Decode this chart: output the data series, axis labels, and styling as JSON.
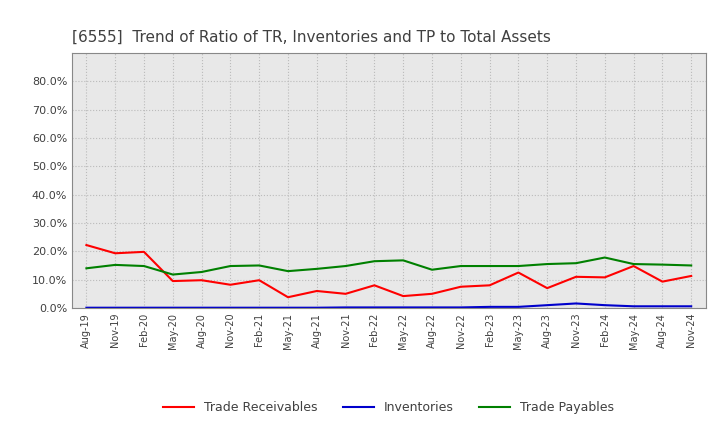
{
  "title": "[6555]  Trend of Ratio of TR, Inventories and TP to Total Assets",
  "x_labels": [
    "Aug-19",
    "Nov-19",
    "Feb-20",
    "May-20",
    "Aug-20",
    "Nov-20",
    "Feb-21",
    "May-21",
    "Aug-21",
    "Nov-21",
    "Feb-22",
    "May-22",
    "Aug-22",
    "Nov-22",
    "Feb-23",
    "May-23",
    "Aug-23",
    "Nov-23",
    "Feb-24",
    "May-24",
    "Aug-24",
    "Nov-24"
  ],
  "trade_receivables": [
    0.222,
    0.193,
    0.198,
    0.095,
    0.098,
    0.082,
    0.098,
    0.038,
    0.06,
    0.05,
    0.08,
    0.042,
    0.05,
    0.075,
    0.08,
    0.125,
    0.07,
    0.11,
    0.108,
    0.148,
    0.093,
    0.113
  ],
  "inventories": [
    0.001,
    0.001,
    0.001,
    0.001,
    0.001,
    0.001,
    0.001,
    0.001,
    0.001,
    0.002,
    0.002,
    0.002,
    0.002,
    0.002,
    0.004,
    0.004,
    0.01,
    0.016,
    0.01,
    0.006,
    0.006,
    0.006
  ],
  "trade_payables": [
    0.14,
    0.152,
    0.148,
    0.118,
    0.127,
    0.148,
    0.15,
    0.13,
    0.138,
    0.148,
    0.165,
    0.168,
    0.135,
    0.148,
    0.148,
    0.148,
    0.155,
    0.158,
    0.178,
    0.155,
    0.153,
    0.15
  ],
  "tr_color": "#ff0000",
  "inv_color": "#0000cc",
  "tp_color": "#008000",
  "ylim": [
    0.0,
    0.9
  ],
  "yticks": [
    0.0,
    0.1,
    0.2,
    0.3,
    0.4,
    0.5,
    0.6,
    0.7,
    0.8
  ],
  "figure_bg": "#ffffff",
  "plot_bg": "#e8e8e8",
  "grid_color": "#bbbbbb",
  "title_color": "#404040",
  "legend_labels": [
    "Trade Receivables",
    "Inventories",
    "Trade Payables"
  ],
  "line_width": 1.5
}
